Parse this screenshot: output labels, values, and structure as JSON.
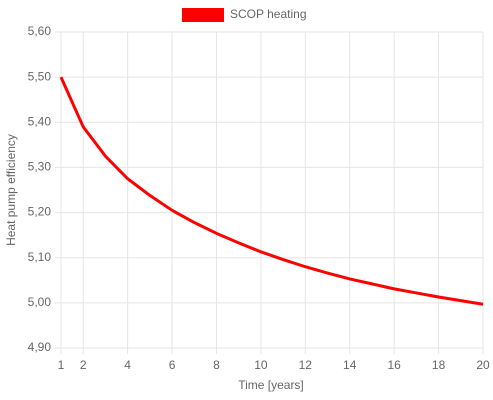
{
  "chart_data": {
    "type": "line",
    "x_label": "Time [years]",
    "y_label": "Heat pump efficiency",
    "x": [
      1,
      2,
      3,
      4,
      5,
      6,
      7,
      8,
      9,
      10,
      11,
      12,
      13,
      14,
      15,
      16,
      17,
      18,
      19,
      20
    ],
    "series": [
      {
        "name": "SCOP heating",
        "color": "#ff0000",
        "values": [
          5.5,
          5.39,
          5.325,
          5.275,
          5.238,
          5.205,
          5.178,
          5.154,
          5.133,
          5.113,
          5.096,
          5.08,
          5.066,
          5.053,
          5.042,
          5.031,
          5.022,
          5.013,
          5.005,
          4.997
        ]
      }
    ],
    "xlim": [
      1,
      20
    ],
    "xticks": [
      1,
      2,
      4,
      6,
      8,
      10,
      12,
      14,
      16,
      18,
      20
    ],
    "ylim": [
      4.9,
      5.6
    ],
    "yticks": [
      {
        "value": 4.9,
        "label": "4,90"
      },
      {
        "value": 5.0,
        "label": "5,00"
      },
      {
        "value": 5.1,
        "label": "5,10"
      },
      {
        "value": 5.2,
        "label": "5,20"
      },
      {
        "value": 5.3,
        "label": "5,30"
      },
      {
        "value": 5.4,
        "label": "5,40"
      },
      {
        "value": 5.5,
        "label": "5,50"
      },
      {
        "value": 5.6,
        "label": "5,60"
      }
    ],
    "grid": true,
    "legend": "top"
  }
}
